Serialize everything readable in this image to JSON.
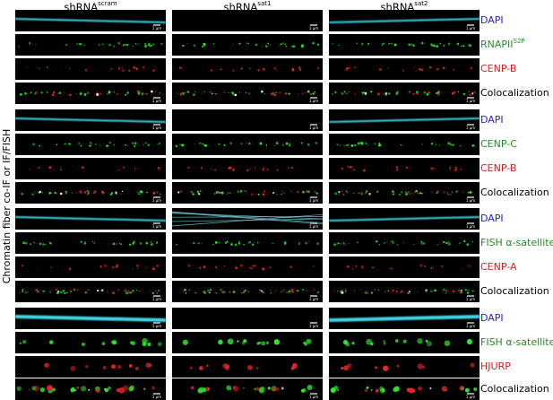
{
  "columns": [
    {
      "base": "shRNA",
      "sup": "scram"
    },
    {
      "base": "shRNA",
      "sup": "sat1"
    },
    {
      "base": "shRNA",
      "sup": "sat2"
    }
  ],
  "side_label": "Chromatin fiber co-IF or IF/FISH",
  "scale_bar_label": "1 μm",
  "groups": [
    {
      "rows": [
        {
          "label": "DAPI",
          "color": "#1f1fcf"
        },
        {
          "label": "RNAPII",
          "sup": "S2P",
          "color": "#2a8a2a"
        },
        {
          "label": "CENP-B",
          "color": "#d42020"
        },
        {
          "label": "Colocalization",
          "color": "#000000"
        }
      ]
    },
    {
      "rows": [
        {
          "label": "DAPI",
          "color": "#1f1fcf"
        },
        {
          "label": "CENP-C",
          "color": "#2a8a2a"
        },
        {
          "label": "CENP-B",
          "color": "#d42020"
        },
        {
          "label": "Colocalization",
          "color": "#000000"
        }
      ]
    },
    {
      "rows": [
        {
          "label": "DAPI",
          "color": "#1f1fcf"
        },
        {
          "label": "FISH α-satellite",
          "color": "#2a8a2a"
        },
        {
          "label": "CENP-A",
          "color": "#d42020"
        },
        {
          "label": "Colocalization",
          "color": "#000000"
        }
      ]
    },
    {
      "rows": [
        {
          "label": "DAPI",
          "color": "#1f1fcf"
        },
        {
          "label": "FISH α-satellite",
          "color": "#2a8a2a"
        },
        {
          "label": "HJURP",
          "color": "#d42020"
        },
        {
          "label": "Colocalization",
          "color": "#000000"
        }
      ]
    }
  ]
}
